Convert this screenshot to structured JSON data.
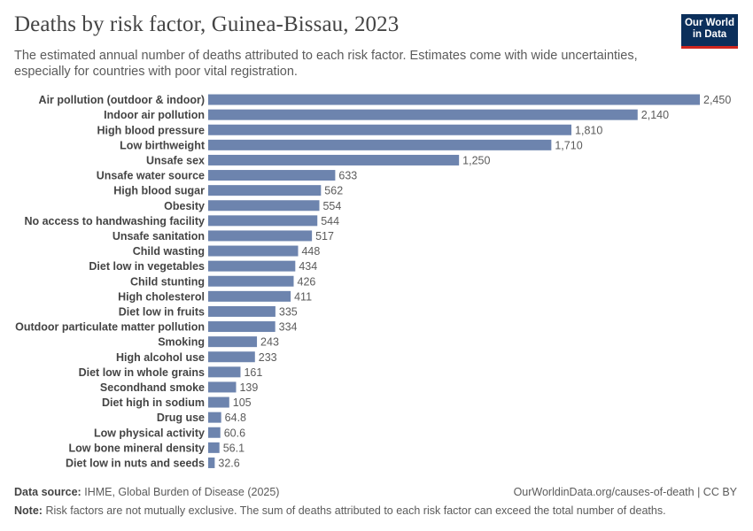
{
  "header": {
    "title": "Deaths by risk factor, Guinea-Bissau, 2023",
    "subtitle": "The estimated annual number of deaths attributed to each risk factor. Estimates come with wide uncertainties, especially for countries with poor vital registration.",
    "logo_line1": "Our World",
    "logo_line2": "in Data"
  },
  "footer": {
    "source_label": "Data source:",
    "source_text": "IHME, Global Burden of Disease (2025)",
    "url_text": "OurWorldinData.org/causes-of-death | CC BY",
    "note_label": "Note:",
    "note_text": "Risk factors are not mutually exclusive. The sum of deaths attributed to each risk factor can exceed the total number of deaths."
  },
  "colors": {
    "bar": "#6d84ae",
    "label": "#444444",
    "value": "#5b5b5b",
    "logo_bg": "#0b2f5b",
    "logo_accent": "#ce261e"
  },
  "chart_data": {
    "type": "bar",
    "orientation": "horizontal",
    "title": "Deaths by risk factor, Guinea-Bissau, 2023",
    "categories": [
      "Air pollution (outdoor & indoor)",
      "Indoor air pollution",
      "High blood pressure",
      "Low birthweight",
      "Unsafe sex",
      "Unsafe water source",
      "High blood sugar",
      "Obesity",
      "No access to handwashing facility",
      "Unsafe sanitation",
      "Child wasting",
      "Diet low in vegetables",
      "Child stunting",
      "High cholesterol",
      "Diet low in fruits",
      "Outdoor particulate matter pollution",
      "Smoking",
      "High alcohol use",
      "Diet low in whole grains",
      "Secondhand smoke",
      "Diet high in sodium",
      "Drug use",
      "Low physical activity",
      "Low bone mineral density",
      "Diet low in nuts and seeds"
    ],
    "values": [
      2450,
      2140,
      1810,
      1710,
      1250,
      633,
      562,
      554,
      544,
      517,
      448,
      434,
      426,
      411,
      335,
      334,
      243,
      233,
      161,
      139,
      105,
      64.8,
      60.6,
      56.1,
      32.6
    ],
    "value_labels": [
      "2,450",
      "2,140",
      "1,810",
      "1,710",
      "1,250",
      "633",
      "562",
      "554",
      "544",
      "517",
      "448",
      "434",
      "426",
      "411",
      "335",
      "334",
      "243",
      "233",
      "161",
      "139",
      "105",
      "64.8",
      "60.6",
      "56.1",
      "32.6"
    ],
    "xlim": [
      0,
      2450
    ],
    "grid": false,
    "legend": "none"
  }
}
